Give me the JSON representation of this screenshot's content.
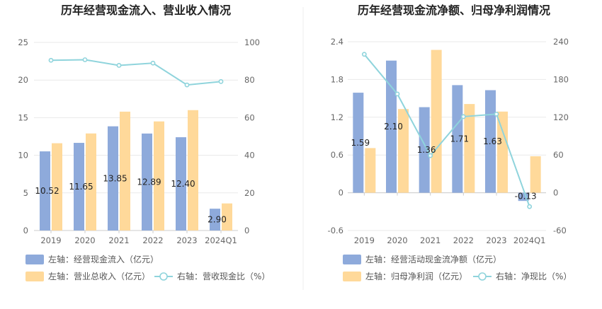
{
  "chart_data": [
    {
      "type": "bar",
      "title": "历年经营现金流入、营业收入情况",
      "categories": [
        "2019",
        "2020",
        "2021",
        "2022",
        "2023",
        "2024Q1"
      ],
      "left_axis": {
        "ylim": [
          0,
          25
        ],
        "ticks": [
          "0",
          "5",
          "10",
          "15",
          "20",
          "25"
        ]
      },
      "right_axis": {
        "ylim": [
          0,
          100
        ],
        "ticks": [
          "0",
          "20",
          "40",
          "60",
          "80",
          "100"
        ]
      },
      "grid": true,
      "legend_position": "bottom",
      "series": [
        {
          "name": "左轴：经营现金流入（亿元）",
          "kind": "bar",
          "axis": "left",
          "color": "#8eaadb",
          "values": [
            10.52,
            11.65,
            13.85,
            12.89,
            12.4,
            2.9
          ],
          "labels": [
            "10.52",
            "11.65",
            "13.85",
            "12.89",
            "12.40",
            "2.90"
          ]
        },
        {
          "name": "左轴：营业总收入（亿元）",
          "kind": "bar",
          "axis": "left",
          "color": "#ffd99a",
          "values": [
            11.6,
            12.9,
            15.8,
            14.5,
            16.0,
            3.6
          ]
        },
        {
          "name": "右轴：营收现金比（%）",
          "kind": "line",
          "axis": "right",
          "color": "#8fd4dc",
          "values": [
            90.5,
            90.8,
            87.8,
            89.0,
            77.4,
            79.2
          ]
        }
      ]
    },
    {
      "type": "bar",
      "title": "历年经营现金流净额、归母净利润情况",
      "categories": [
        "2019",
        "2020",
        "2021",
        "2022",
        "2023",
        "2024Q1"
      ],
      "left_axis": {
        "ylim": [
          -0.6,
          2.4
        ],
        "ticks": [
          "-0.6",
          "0",
          "0.6",
          "1.2",
          "1.8",
          "2.4"
        ]
      },
      "right_axis": {
        "ylim": [
          -60,
          240
        ],
        "ticks": [
          "-60",
          "0",
          "60",
          "120",
          "180",
          "240"
        ]
      },
      "grid": true,
      "legend_position": "bottom",
      "series": [
        {
          "name": "左轴：经营活动现金流净额（亿元）",
          "kind": "bar",
          "axis": "left",
          "color": "#8eaadb",
          "values": [
            1.59,
            2.1,
            1.36,
            1.71,
            1.63,
            -0.13
          ],
          "labels": [
            "1.59",
            "2.10",
            "1.36",
            "1.71",
            "1.63",
            "-0.13"
          ]
        },
        {
          "name": "左轴：归母净利润（亿元）",
          "kind": "bar",
          "axis": "left",
          "color": "#ffd99a",
          "values": [
            0.71,
            1.33,
            2.27,
            1.41,
            1.29,
            0.58
          ]
        },
        {
          "name": "右轴：净现比（%）",
          "kind": "line",
          "axis": "right",
          "color": "#8fd4dc",
          "values": [
            220,
            157,
            59,
            121,
            125,
            -22
          ]
        }
      ]
    }
  ]
}
